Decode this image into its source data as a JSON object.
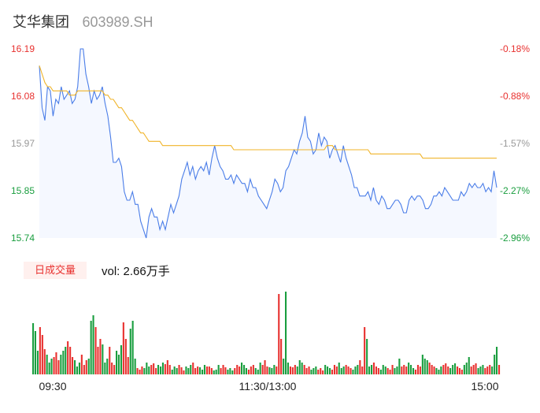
{
  "header": {
    "name": "艾华集团",
    "code": "603989.SH"
  },
  "volume_panel": {
    "badge": "日成交量",
    "label": "vol:",
    "value": "2.66万手"
  },
  "colors": {
    "price": "#4a7de8",
    "avg": "#f0b429",
    "up": "#e8312f",
    "down": "#1a9e3f",
    "area": "#f5f8ff"
  },
  "chart_data": [
    {
      "type": "line",
      "name": "intraday-price",
      "y_ticks": [
        "16.19",
        "16.08",
        "15.97",
        "15.85",
        "15.74"
      ],
      "y_ticks_right": [
        "-0.18%",
        "-0.88%",
        "-1.57%",
        "-2.27%",
        "-2.96%"
      ],
      "ylim": [
        15.74,
        16.19
      ],
      "x_ticks": [
        "09:30",
        "11:30/13:00",
        "15:00"
      ],
      "price": [
        16.15,
        16.05,
        16.02,
        16.1,
        16.09,
        16.03,
        16.07,
        16.06,
        16.1,
        16.07,
        16.08,
        16.09,
        16.06,
        16.07,
        16.1,
        16.19,
        16.19,
        16.13,
        16.1,
        16.06,
        16.09,
        16.07,
        16.08,
        16.1,
        16.06,
        16.03,
        15.98,
        15.92,
        15.92,
        15.93,
        15.91,
        15.85,
        15.83,
        15.83,
        15.85,
        15.82,
        15.82,
        15.78,
        15.76,
        15.74,
        15.79,
        15.81,
        15.79,
        15.79,
        15.76,
        15.78,
        15.76,
        15.79,
        15.82,
        15.8,
        15.82,
        15.84,
        15.88,
        15.9,
        15.92,
        15.89,
        15.91,
        15.88,
        15.9,
        15.91,
        15.9,
        15.92,
        15.89,
        15.93,
        15.96,
        15.93,
        15.91,
        15.9,
        15.88,
        15.88,
        15.89,
        15.87,
        15.89,
        15.88,
        15.87,
        15.87,
        15.85,
        15.88,
        15.86,
        15.86,
        15.84,
        15.83,
        15.82,
        15.81,
        15.83,
        15.85,
        15.88,
        15.87,
        15.85,
        15.86,
        15.9,
        15.91,
        15.93,
        15.95,
        15.94,
        15.97,
        15.99,
        16.03,
        15.98,
        15.97,
        15.94,
        15.95,
        15.99,
        15.96,
        15.98,
        15.97,
        15.93,
        15.95,
        15.96,
        15.94,
        15.92,
        15.96,
        15.93,
        15.91,
        15.89,
        15.86,
        15.86,
        15.84,
        15.84,
        15.84,
        15.85,
        15.83,
        15.86,
        15.83,
        15.82,
        15.84,
        15.83,
        15.81,
        15.81,
        15.82,
        15.83,
        15.83,
        15.82,
        15.8,
        15.8,
        15.83,
        15.84,
        15.83,
        15.84,
        15.84,
        15.83,
        15.81,
        15.81,
        15.82,
        15.84,
        15.84,
        15.85,
        15.84,
        15.86,
        15.85,
        15.84,
        15.83,
        15.83,
        15.83,
        15.85,
        15.84,
        15.85,
        15.87,
        15.86,
        15.87,
        15.86,
        15.86,
        15.87,
        15.85,
        15.86,
        15.85,
        15.9,
        15.86
      ],
      "avg_price": [
        16.15,
        16.13,
        16.11,
        16.1,
        16.1,
        16.09,
        16.09,
        16.09,
        16.09,
        16.09,
        16.09,
        16.08,
        16.08,
        16.08,
        16.09,
        16.09,
        16.09,
        16.09,
        16.09,
        16.09,
        16.09,
        16.09,
        16.09,
        16.09,
        16.08,
        16.08,
        16.07,
        16.07,
        16.06,
        16.05,
        16.05,
        16.04,
        16.03,
        16.02,
        16.02,
        16.01,
        16.0,
        15.99,
        15.99,
        15.98,
        15.97,
        15.97,
        15.97,
        15.97,
        15.97,
        15.96,
        15.96,
        15.96,
        15.96,
        15.96,
        15.96,
        15.96,
        15.96,
        15.96,
        15.96,
        15.96,
        15.96,
        15.96,
        15.96,
        15.96,
        15.96,
        15.96,
        15.96,
        15.96,
        15.96,
        15.96,
        15.96,
        15.96,
        15.96,
        15.96,
        15.96,
        15.95,
        15.95,
        15.95,
        15.95,
        15.95,
        15.95,
        15.95,
        15.95,
        15.95,
        15.95,
        15.95,
        15.95,
        15.95,
        15.95,
        15.95,
        15.95,
        15.95,
        15.95,
        15.95,
        15.95,
        15.95,
        15.95,
        15.95,
        15.95,
        15.95,
        15.95,
        15.95,
        15.95,
        15.95,
        15.95,
        15.95,
        15.95,
        15.95,
        15.95,
        15.96,
        15.96,
        15.96,
        15.95,
        15.95,
        15.95,
        15.95,
        15.95,
        15.95,
        15.95,
        15.95,
        15.95,
        15.95,
        15.95,
        15.95,
        15.95,
        15.94,
        15.94,
        15.94,
        15.94,
        15.94,
        15.94,
        15.94,
        15.94,
        15.94,
        15.94,
        15.94,
        15.94,
        15.94,
        15.94,
        15.94,
        15.94,
        15.94,
        15.94,
        15.94,
        15.93,
        15.93,
        15.93,
        15.93,
        15.93,
        15.93,
        15.93,
        15.93,
        15.93,
        15.93,
        15.93,
        15.93,
        15.93,
        15.93,
        15.93,
        15.93,
        15.93,
        15.93,
        15.93,
        15.93,
        15.93,
        15.93,
        15.93,
        15.93,
        15.93,
        15.93,
        15.93,
        15.93
      ]
    },
    {
      "type": "bar",
      "name": "volume",
      "ylim": [
        0,
        105
      ],
      "volume": [
        65,
        55,
        30,
        60,
        50,
        32,
        25,
        15,
        20,
        22,
        28,
        18,
        25,
        30,
        35,
        42,
        35,
        22,
        18,
        10,
        15,
        25,
        12,
        18,
        20,
        68,
        75,
        60,
        35,
        45,
        38,
        15,
        20,
        35,
        15,
        12,
        30,
        25,
        37,
        66,
        45,
        22,
        58,
        68,
        20,
        8,
        6,
        10,
        8,
        15,
        10,
        12,
        14,
        8,
        12,
        10,
        15,
        13,
        18,
        12,
        6,
        10,
        8,
        12,
        9,
        5,
        10,
        8,
        12,
        15,
        8,
        10,
        9,
        6,
        12,
        10,
        10,
        8,
        5,
        6,
        12,
        8,
        12,
        9,
        6,
        8,
        5,
        8,
        12,
        10,
        15,
        12,
        8,
        6,
        10,
        12,
        8,
        6,
        15,
        12,
        18,
        10,
        9,
        8,
        12,
        10,
        102,
        45,
        20,
        105,
        15,
        10,
        9,
        12,
        10,
        18,
        15,
        12,
        8,
        10,
        6,
        8,
        10,
        6,
        8,
        5,
        12,
        10,
        8,
        6,
        12,
        10,
        15,
        8,
        10,
        12,
        10,
        8,
        6,
        10,
        12,
        18,
        10,
        60,
        45,
        10,
        12,
        15,
        10,
        8,
        6,
        12,
        10,
        8,
        6,
        12,
        8,
        10,
        20,
        10,
        12,
        10,
        15,
        12,
        8,
        6,
        12,
        10,
        25,
        20,
        18,
        15,
        12,
        10,
        8,
        6,
        10,
        12,
        14,
        10,
        8,
        12,
        14,
        10,
        8,
        6,
        12,
        15,
        22,
        10,
        12,
        14,
        8,
        10,
        12,
        8,
        10,
        12,
        10,
        25,
        35,
        12
      ]
    }
  ]
}
